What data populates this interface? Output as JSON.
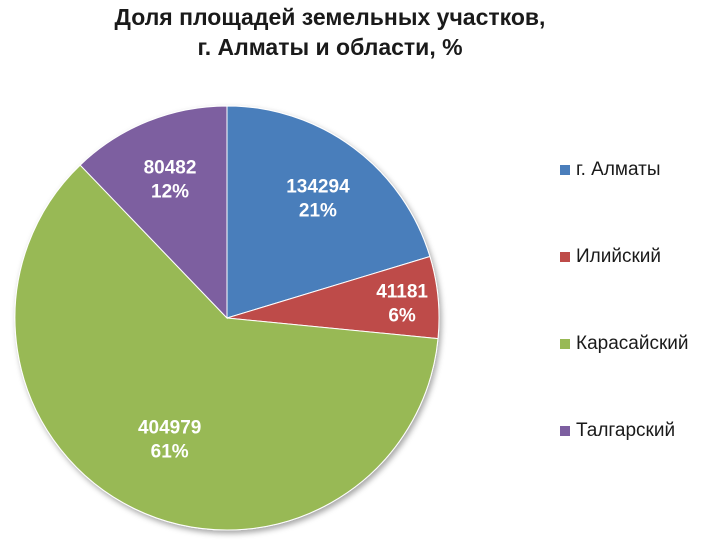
{
  "chart_data": {
    "type": "pie",
    "title_lines": [
      "Доля площадей земельных участков,",
      "г. Алматы и области,  %"
    ],
    "categories": [
      "г. Алматы",
      "Илийский",
      "Карасайский",
      "Талгарский"
    ],
    "values": [
      134294,
      41181,
      404979,
      80482
    ],
    "percent_labels": [
      "21%",
      "6%",
      "61%",
      "12%"
    ],
    "colors": [
      "#4a7ebb",
      "#be4b48",
      "#98b954",
      "#7d5fa0"
    ],
    "legend_position": "right"
  }
}
